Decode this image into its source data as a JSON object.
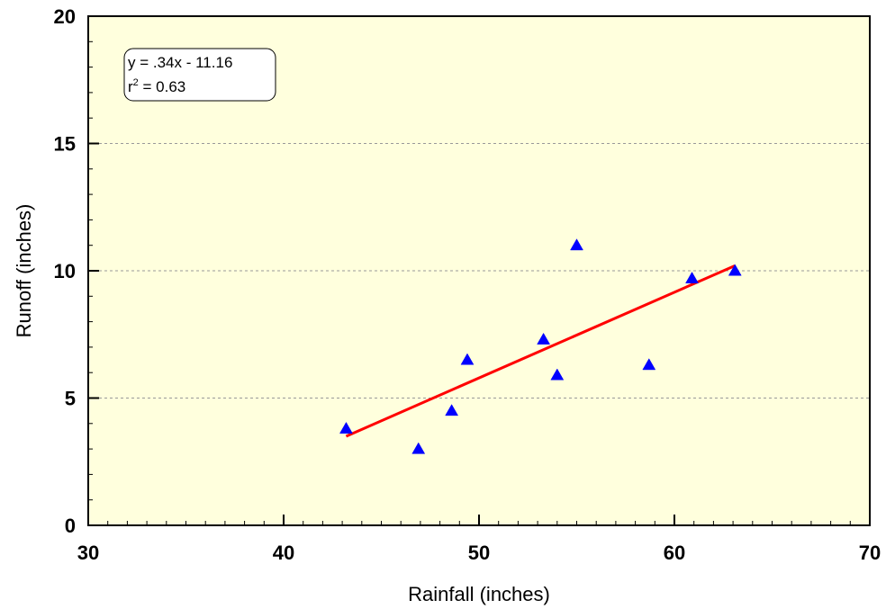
{
  "chart_data": {
    "type": "scatter",
    "xlabel": "Rainfall (inches)",
    "ylabel": "Runoff (inches)",
    "xlim": [
      30,
      70
    ],
    "ylim": [
      0,
      20
    ],
    "xticks": [
      30,
      40,
      50,
      60,
      70
    ],
    "yticks": [
      0,
      5,
      10,
      15,
      20
    ],
    "xtick_labels": [
      "30",
      "40",
      "50",
      "60",
      "70"
    ],
    "ytick_labels": [
      "0",
      "5",
      "10",
      "15",
      "20"
    ],
    "grid": "horizontal dashed",
    "background_color": "#ffffdd",
    "marker": "triangle",
    "marker_color": "#0000ff",
    "series": [
      {
        "x": [
          43.2,
          46.9,
          48.6,
          49.4,
          53.3,
          54.0,
          55.0,
          58.7,
          60.9,
          63.1
        ],
        "y": [
          3.8,
          3.0,
          4.5,
          6.5,
          7.3,
          5.9,
          11.0,
          6.3,
          9.7,
          10.0
        ]
      }
    ],
    "trendline": {
      "color": "#ff0000",
      "x": [
        43.2,
        63.1
      ],
      "y": [
        3.5,
        10.2
      ]
    },
    "annotation": {
      "line1": "y = .34x - 11.16",
      "line2_base": "r",
      "line2_sup": "2",
      "line2_rest": " = 0.63"
    }
  }
}
